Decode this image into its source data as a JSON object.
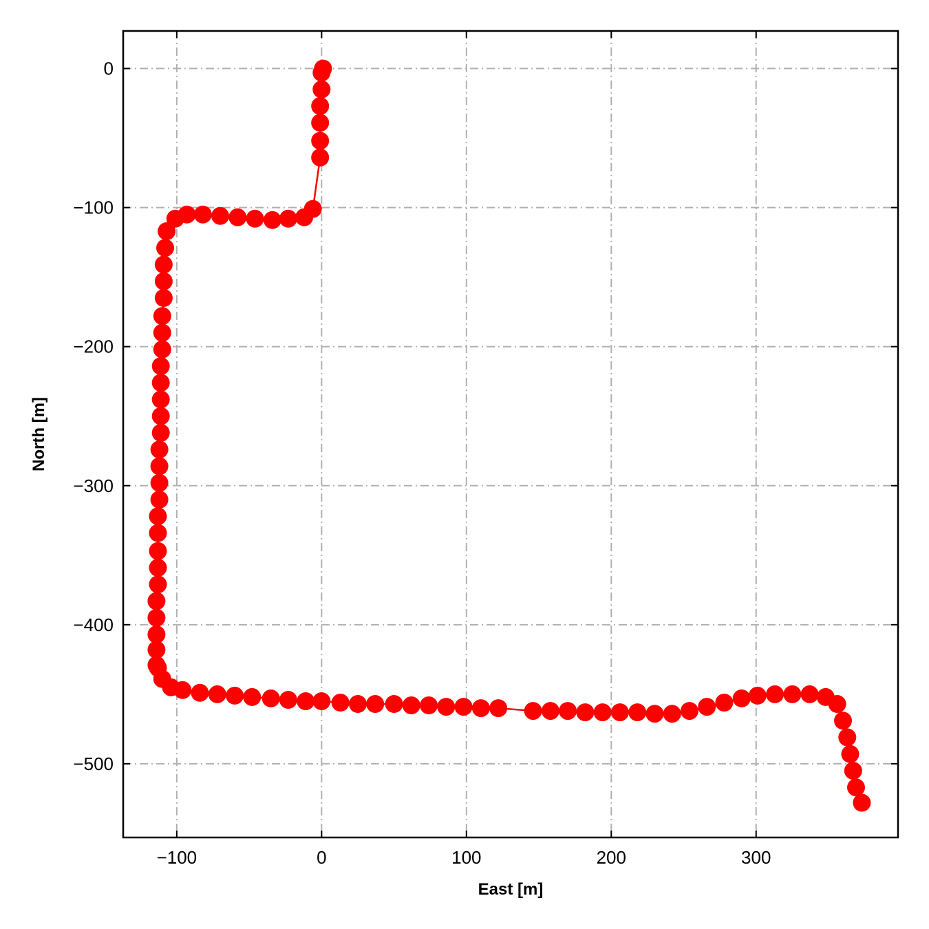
{
  "chart_data": {
    "type": "line",
    "xlabel": "East [m]",
    "ylabel": "North [m]",
    "xlim": [
      -137,
      398
    ],
    "ylim": [
      -553,
      27
    ],
    "grid": true,
    "xticks": [
      -100,
      0,
      100,
      200,
      300
    ],
    "yticks": [
      0,
      -100,
      -200,
      -300,
      -400,
      -500
    ],
    "xtick_labels": [
      "−100",
      "0",
      "100",
      "200",
      "300"
    ],
    "ytick_labels": [
      "0",
      "−100",
      "−200",
      "−300",
      "−400",
      "−500"
    ],
    "series": [
      {
        "color": "#ff0000",
        "marker": "circle",
        "x": [
          1,
          0,
          0,
          -1,
          -1,
          -1,
          -1,
          -6,
          -12,
          -23,
          -34,
          -46,
          -58,
          -70,
          -82,
          -93,
          -101,
          -107,
          -108,
          -109,
          -109,
          -109,
          -110,
          -110,
          -110,
          -111,
          -111,
          -111,
          -111,
          -111,
          -112,
          -112,
          -112,
          -112,
          -113,
          -113,
          -113,
          -113,
          -113,
          -114,
          -114,
          -114,
          -114,
          -114,
          -113,
          -110,
          -104,
          -96,
          -84,
          -72,
          -60,
          -48,
          -35,
          -23,
          -11,
          0,
          13,
          25,
          37,
          50,
          62,
          74,
          86,
          98,
          110,
          122,
          146,
          158,
          170,
          182,
          194,
          206,
          218,
          230,
          242,
          254,
          266,
          278,
          290,
          301,
          313,
          325,
          337,
          348,
          356,
          360,
          363,
          365,
          367,
          369,
          373
        ],
        "y": [
          0,
          -3,
          -15,
          -27,
          -39,
          -52,
          -64,
          -101,
          -107,
          -108,
          -109,
          -108,
          -107,
          -106,
          -105,
          -105,
          -108,
          -117,
          -129,
          -141,
          -153,
          -165,
          -178,
          -190,
          -202,
          -214,
          -226,
          -238,
          -250,
          -262,
          -274,
          -286,
          -298,
          -310,
          -322,
          -334,
          -347,
          -359,
          -371,
          -383,
          -395,
          -407,
          -418,
          -429,
          -431,
          -439,
          -445,
          -447,
          -449,
          -450,
          -451,
          -452,
          -453,
          -454,
          -455,
          -455,
          -456,
          -457,
          -457,
          -457,
          -458,
          -458,
          -459,
          -459,
          -460,
          -460,
          -462,
          -462,
          -462,
          -463,
          -463,
          -463,
          -463,
          -464,
          -464,
          -462,
          -459,
          -456,
          -453,
          -451,
          -450,
          -450,
          -450,
          -452,
          -457,
          -469,
          -481,
          -493,
          -505,
          -517,
          -528
        ]
      }
    ]
  }
}
